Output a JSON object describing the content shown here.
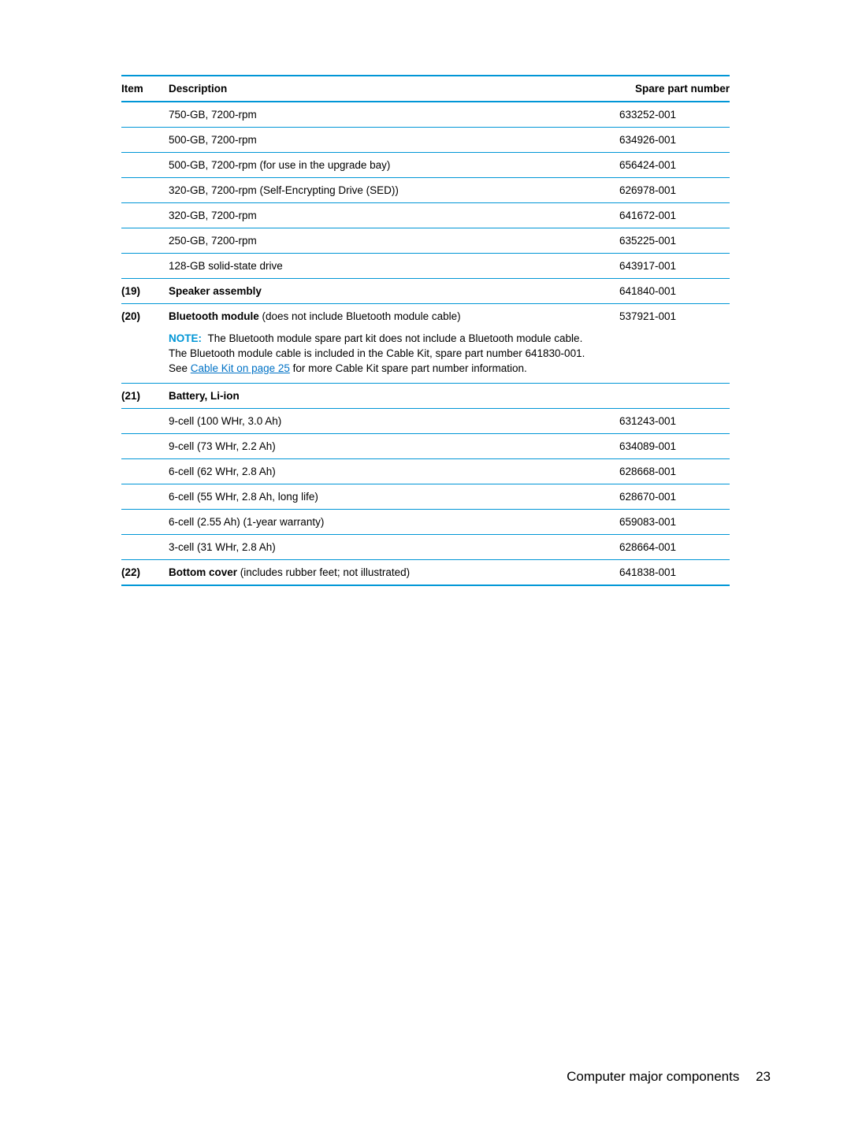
{
  "table": {
    "headers": {
      "item": "Item",
      "description": "Description",
      "part": "Spare part number"
    },
    "rows": [
      {
        "item": "",
        "desc": "750-GB, 7200-rpm",
        "part": "633252-001"
      },
      {
        "item": "",
        "desc": "500-GB, 7200-rpm",
        "part": "634926-001"
      },
      {
        "item": "",
        "desc": "500-GB, 7200-rpm (for use in the upgrade bay)",
        "part": "656424-001"
      },
      {
        "item": "",
        "desc": "320-GB, 7200-rpm (Self-Encrypting Drive (SED))",
        "part": "626978-001"
      },
      {
        "item": "",
        "desc": "320-GB, 7200-rpm",
        "part": "641672-001"
      },
      {
        "item": "",
        "desc": "250-GB, 7200-rpm",
        "part": "635225-001"
      },
      {
        "item": "",
        "desc": "128-GB solid-state drive",
        "part": "643917-001"
      }
    ],
    "speaker": {
      "item": "(19)",
      "label": "Speaker assembly",
      "part": "641840-001"
    },
    "bluetooth": {
      "item": "(20)",
      "label": "Bluetooth module",
      "suffix": " (does not include Bluetooth module cable)",
      "part": "537921-001",
      "note_label": "NOTE:",
      "note_text1": "The Bluetooth module spare part kit does not include a Bluetooth module cable. The Bluetooth module cable is included in the Cable Kit, spare part number 641830-001. See ",
      "note_link": "Cable Kit on page 25",
      "note_text2": " for more Cable Kit spare part number information."
    },
    "battery": {
      "item": "(21)",
      "label": "Battery, Li-ion",
      "rows": [
        {
          "desc": "9-cell (100 WHr, 3.0 Ah)",
          "part": "631243-001"
        },
        {
          "desc": "9-cell (73 WHr, 2.2 Ah)",
          "part": "634089-001"
        },
        {
          "desc": "6-cell (62 WHr, 2.8 Ah)",
          "part": "628668-001"
        },
        {
          "desc": "6-cell (55 WHr, 2.8 Ah, long life)",
          "part": "628670-001"
        },
        {
          "desc": "6-cell (2.55 Ah) (1-year warranty)",
          "part": "659083-001"
        },
        {
          "desc": "3-cell (31 WHr, 2.8 Ah)",
          "part": "628664-001"
        }
      ]
    },
    "bottom_cover": {
      "item": "(22)",
      "label": "Bottom cover",
      "suffix": " (includes rubber feet; not illustrated)",
      "part": "641838-001"
    }
  },
  "footer": {
    "section": "Computer major components",
    "page": "23"
  }
}
